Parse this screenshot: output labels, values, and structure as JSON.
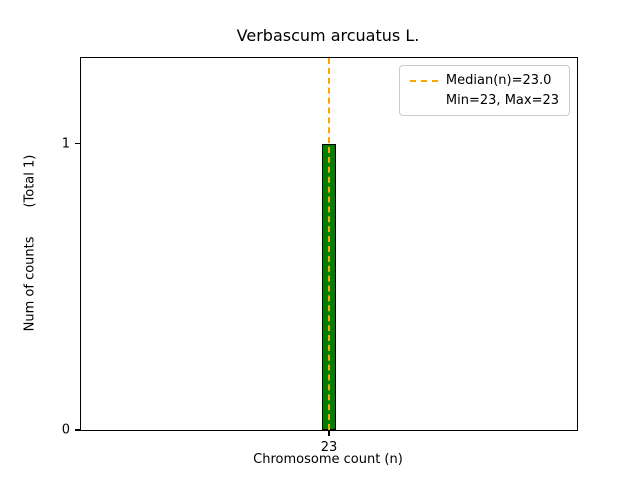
{
  "chart_data": {
    "type": "bar",
    "title": "Verbascum arcuatus L.",
    "xlabel": "Chromosome count (n)",
    "ylabel": "Num of counts       (Total 1)",
    "categories": [
      "23"
    ],
    "values": [
      1
    ],
    "yticks": [
      "0",
      "1"
    ],
    "ytick_values": [
      0,
      1
    ],
    "ylim": [
      0,
      1.3
    ],
    "grid": false,
    "bar_color": "#008000",
    "bar_edge_color": "#000000",
    "median_line": {
      "x": 23,
      "color": "#FFA500",
      "style": "dashed"
    },
    "legend": {
      "position": "upper right",
      "entries": [
        {
          "label": "Median(n)=23.0",
          "handle": "dashed-line",
          "color": "#FFA500"
        },
        {
          "label": "Min=23, Max=23",
          "handle": "none"
        }
      ]
    }
  }
}
